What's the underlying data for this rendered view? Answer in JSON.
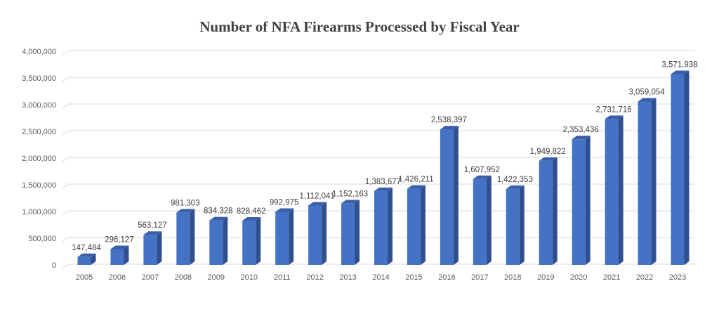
{
  "chart_data": {
    "type": "bar",
    "title": "Number of NFA Firearms Processed by Fiscal Year",
    "xlabel": "",
    "ylabel": "",
    "categories": [
      "2005",
      "2006",
      "2007",
      "2008",
      "2009",
      "2010",
      "2011",
      "2012",
      "2013",
      "2014",
      "2015",
      "2016",
      "2017",
      "2018",
      "2019",
      "2020",
      "2021",
      "2022",
      "2023"
    ],
    "values": [
      147484,
      296127,
      563127,
      981303,
      834328,
      828462,
      992975,
      1112041,
      1152163,
      1383677,
      1426211,
      2538397,
      1607952,
      1422353,
      1949822,
      2353436,
      2731716,
      3059054,
      3571938
    ],
    "data_labels": [
      "147,484",
      "296,127",
      "563,127",
      "981,303",
      "834,328",
      "828,462",
      "992,975",
      "1,112,041",
      "1,152,163",
      "1,383,677",
      "1,426,211",
      "2,538,397",
      "1,607,952",
      "1,422,353",
      "1,949,822",
      "2,353,436",
      "2,731,716",
      "3,059,054",
      "3,571,938"
    ],
    "ylim": [
      0,
      4000000
    ],
    "yticks": [
      0,
      500000,
      1000000,
      1500000,
      2000000,
      2500000,
      3000000,
      3500000,
      4000000
    ],
    "ytick_labels": [
      "0",
      "500,000",
      "1,000,000",
      "1,500,000",
      "2,000,000",
      "2,500,000",
      "3,000,000",
      "3,500,000",
      "4,000,000"
    ],
    "grid": true,
    "legend": "none",
    "style": "3d-column",
    "colors": {
      "bar_front": "#4472C4",
      "bar_side": "#2F4F8F",
      "bar_top": "#3A5FA8",
      "grid": "#D9D9D9"
    }
  }
}
